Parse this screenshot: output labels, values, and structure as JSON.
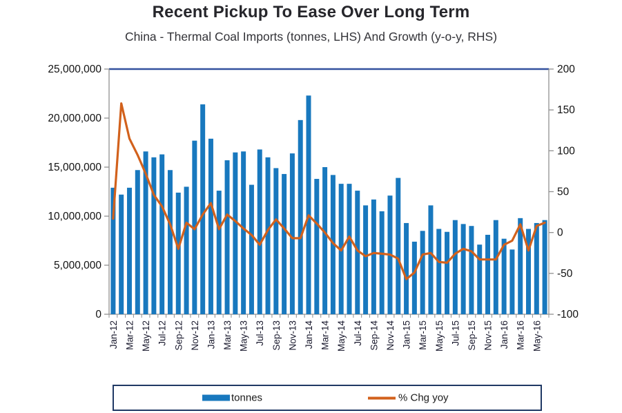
{
  "header": {
    "title": "Recent Pickup To Ease Over Long Term",
    "subtitle": "China - Thermal Coal Imports (tonnes, LHS) And Growth (y-o-y, RHS)"
  },
  "colors": {
    "bar": "#1878be",
    "line": "#d2611c",
    "plot_top_border": "#33519e",
    "axis": "#909090",
    "tick_text": "#111111",
    "x_label_text": "#1a1a2e",
    "legend_border": "#1f3864",
    "legend_text": "#1a1a1a"
  },
  "legend": {
    "items": [
      {
        "label": "tonnes",
        "type": "bar",
        "color": "#1878be"
      },
      {
        "label": "% Chg yoy",
        "type": "line",
        "color": "#d2611c"
      }
    ]
  },
  "chart_data": {
    "type": "bar",
    "title": "Recent Pickup To Ease Over Long Term",
    "subtitle": "China - Thermal Coal Imports (tonnes, LHS) And Growth (y-o-y, RHS)",
    "categories": [
      "Jan-12",
      "Feb-12",
      "Mar-12",
      "Apr-12",
      "May-12",
      "Jun-12",
      "Jul-12",
      "Aug-12",
      "Sep-12",
      "Oct-12",
      "Nov-12",
      "Dec-12",
      "Jan-13",
      "Feb-13",
      "Mar-13",
      "Apr-13",
      "May-13",
      "Jun-13",
      "Jul-13",
      "Aug-13",
      "Sep-13",
      "Oct-13",
      "Nov-13",
      "Dec-13",
      "Jan-14",
      "Feb-14",
      "Mar-14",
      "Apr-14",
      "May-14",
      "Jun-14",
      "Jul-14",
      "Aug-14",
      "Sep-14",
      "Oct-14",
      "Nov-14",
      "Dec-14",
      "Jan-15",
      "Feb-15",
      "Mar-15",
      "Apr-15",
      "May-15",
      "Jun-15",
      "Jul-15",
      "Aug-15",
      "Sep-15",
      "Oct-15",
      "Nov-15",
      "Dec-15",
      "Jan-16",
      "Feb-16",
      "Mar-16",
      "Apr-16",
      "May-16",
      "Jun-16"
    ],
    "x_tick_labels": [
      "Jan-12",
      "Mar-12",
      "May-12",
      "Jul-12",
      "Sep-12",
      "Nov-12",
      "Jan-13",
      "Mar-13",
      "May-13",
      "Jul-13",
      "Sep-13",
      "Nov-13",
      "Jan-14",
      "Mar-14",
      "May-14",
      "Jul-14",
      "Sep-14",
      "Nov-14",
      "Jan-15",
      "Mar-15",
      "May-15",
      "Jul-15",
      "Sep-15",
      "Nov-15",
      "Jan-16",
      "Mar-16",
      "May-16"
    ],
    "series": [
      {
        "name": "tonnes",
        "type": "bar",
        "axis": "left",
        "color": "#1878be",
        "values": [
          12900000,
          12200000,
          12900000,
          14700000,
          16600000,
          16000000,
          16300000,
          14700000,
          12400000,
          13000000,
          17700000,
          21400000,
          17900000,
          12600000,
          15700000,
          16500000,
          16600000,
          13200000,
          16800000,
          16000000,
          14900000,
          14300000,
          16400000,
          19800000,
          22300000,
          13800000,
          15000000,
          14200000,
          13300000,
          13300000,
          12600000,
          11100000,
          11700000,
          10500000,
          12100000,
          13900000,
          9300000,
          7400000,
          8500000,
          11100000,
          8700000,
          8400000,
          9600000,
          9200000,
          9000000,
          7100000,
          8100000,
          9600000,
          7700000,
          6600000,
          9800000,
          8700000,
          9300000,
          9600000
        ]
      },
      {
        "name": "% Chg yoy",
        "type": "line",
        "axis": "right",
        "color": "#d2611c",
        "values": [
          17,
          158,
          115,
          95,
          72,
          46,
          32,
          10,
          -20,
          12,
          4,
          22,
          36,
          4,
          22,
          14,
          5,
          -3,
          -15,
          3,
          16,
          5,
          -7,
          -7,
          21,
          11,
          0,
          -13,
          -22,
          -5,
          -22,
          -29,
          -25,
          -26,
          -27,
          -32,
          -57,
          -49,
          -27,
          -25,
          -36,
          -37,
          -26,
          -20,
          -23,
          -33,
          -33,
          -33,
          -15,
          -10,
          10,
          -22,
          8,
          12
        ]
      }
    ],
    "left_axis": {
      "min": 0,
      "max": 25000000,
      "step": 5000000,
      "tick_labels": [
        "25,000,000",
        "20,000,000",
        "15,000,000",
        "10,000,000",
        "5,000,000",
        "0"
      ]
    },
    "right_axis": {
      "min": -100,
      "max": 200,
      "step": 50,
      "tick_labels": [
        "200",
        "150",
        "100",
        "50",
        "0",
        "-50",
        "-100"
      ]
    },
    "grid": false,
    "legend_position": "bottom"
  }
}
